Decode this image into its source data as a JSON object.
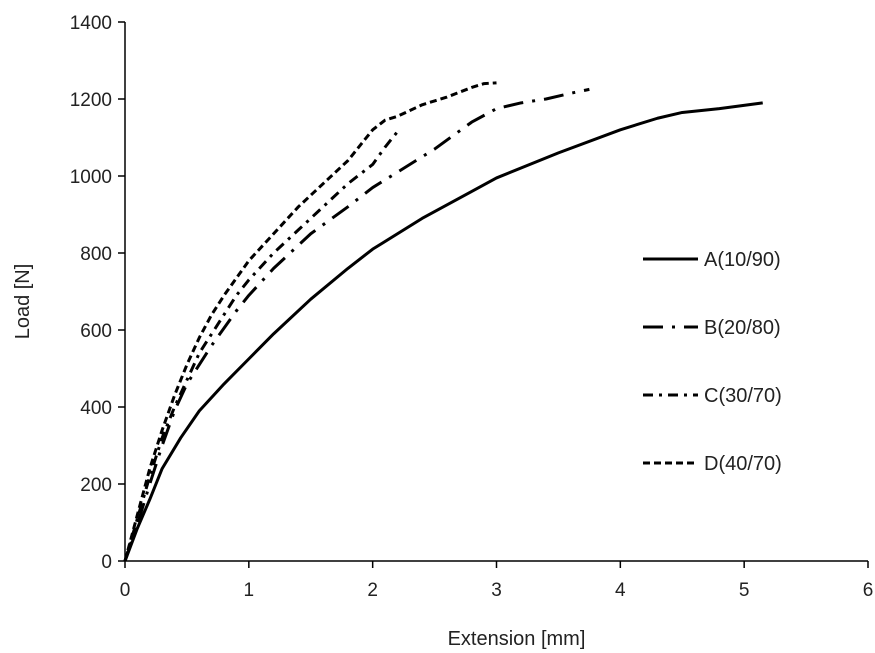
{
  "chart_data": {
    "type": "line",
    "title": "",
    "xlabel": "Extension [mm]",
    "ylabel": "Load [N]",
    "xlim": [
      0,
      6
    ],
    "ylim": [
      0,
      1400
    ],
    "x_ticks": [
      0,
      1,
      2,
      3,
      4,
      5,
      6
    ],
    "y_ticks": [
      0,
      200,
      400,
      600,
      800,
      1000,
      1200,
      1400
    ],
    "grid": false,
    "legend_position": "right",
    "series": [
      {
        "name": "A(10/90)",
        "line_style": "solid",
        "color": "#000000",
        "x": [
          0,
          0.1,
          0.2,
          0.3,
          0.45,
          0.6,
          0.8,
          1.0,
          1.2,
          1.5,
          1.8,
          2.0,
          2.4,
          2.8,
          3.0,
          3.5,
          4.0,
          4.3,
          4.5,
          4.8,
          5.15
        ],
        "y": [
          0,
          85,
          160,
          240,
          320,
          390,
          460,
          525,
          590,
          680,
          760,
          810,
          890,
          960,
          995,
          1060,
          1120,
          1150,
          1165,
          1175,
          1190
        ]
      },
      {
        "name": "B(20/80)",
        "line_style": "long-dash-dot",
        "color": "#000000",
        "x": [
          0,
          0.1,
          0.2,
          0.3,
          0.4,
          0.5,
          0.7,
          0.9,
          1.0,
          1.2,
          1.5,
          1.8,
          2.0,
          2.2,
          2.5,
          2.8,
          3.0,
          3.2,
          3.4,
          3.6,
          3.75
        ],
        "y": [
          0,
          95,
          200,
          300,
          390,
          460,
          560,
          650,
          690,
          760,
          850,
          920,
          970,
          1010,
          1070,
          1140,
          1175,
          1190,
          1200,
          1215,
          1225
        ]
      },
      {
        "name": "C(30/70)",
        "line_style": "dash-dot",
        "color": "#000000",
        "x": [
          0,
          0.1,
          0.2,
          0.3,
          0.4,
          0.5,
          0.6,
          0.7,
          0.8,
          0.9,
          1.0,
          1.2,
          1.4,
          1.6,
          1.8,
          2.0,
          2.1,
          2.2
        ],
        "y": [
          0,
          110,
          220,
          320,
          400,
          470,
          540,
          590,
          640,
          690,
          730,
          800,
          860,
          920,
          980,
          1030,
          1075,
          1115
        ]
      },
      {
        "name": "D(40/70)",
        "line_style": "short-dash",
        "color": "#000000",
        "x": [
          0,
          0.1,
          0.2,
          0.3,
          0.4,
          0.5,
          0.6,
          0.7,
          0.8,
          1.0,
          1.2,
          1.4,
          1.6,
          1.8,
          2.0,
          2.1,
          2.2,
          2.4,
          2.6,
          2.8,
          2.9,
          3.0
        ],
        "y": [
          0,
          120,
          240,
          340,
          430,
          510,
          580,
          640,
          690,
          780,
          850,
          920,
          980,
          1040,
          1120,
          1145,
          1155,
          1185,
          1205,
          1230,
          1240,
          1242
        ]
      }
    ]
  }
}
